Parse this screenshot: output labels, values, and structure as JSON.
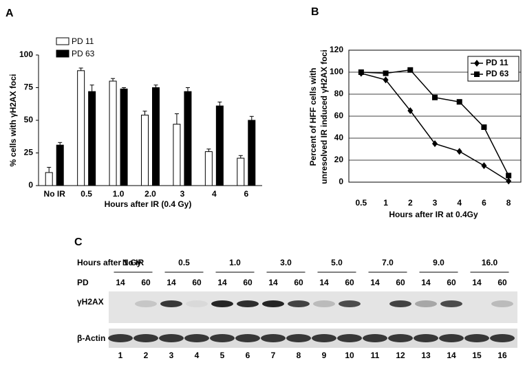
{
  "panel_labels": [
    "A",
    "B",
    "C"
  ],
  "chart_data": [
    {
      "type": "bar",
      "ylabel": "% cells with γH2AX foci",
      "xlabel": "Hours after IR (0.4 Gy)",
      "categories": [
        "No IR",
        "0.5",
        "1.0",
        "2.0",
        "3",
        "4",
        "6"
      ],
      "series": [
        {
          "name": "PD 11",
          "color": "#ffffff",
          "values": [
            10,
            88,
            80,
            54,
            47,
            26,
            21
          ],
          "errors": [
            4,
            2,
            2,
            3,
            8,
            2,
            2
          ]
        },
        {
          "name": "PD 63",
          "color": "#000000",
          "values": [
            31,
            72,
            74,
            75,
            72,
            61,
            50
          ],
          "errors": [
            2,
            5,
            1,
            2,
            3,
            3,
            3
          ]
        }
      ],
      "ylim": [
        0,
        100
      ],
      "yticks": [
        0,
        25,
        50,
        75,
        100
      ],
      "grid": false,
      "legend": "upper left"
    },
    {
      "type": "line",
      "ylabel": [
        "Percent of HFF cells with",
        "unresolved IR induced γH2AX foci"
      ],
      "xlabel": "Hours after IR at 0.4Gy",
      "categories": [
        "0.5",
        "1",
        "2",
        "3",
        "4",
        "6",
        "8"
      ],
      "series": [
        {
          "name": "PD 11",
          "color": "#000000",
          "marker": "diamond",
          "values": [
            99,
            93,
            65,
            35,
            28,
            15,
            1
          ]
        },
        {
          "name": "PD 63",
          "color": "#000000",
          "marker": "square",
          "values": [
            100,
            99,
            102,
            77,
            73,
            50,
            6
          ]
        }
      ],
      "ylim": [
        0,
        120
      ],
      "yticks": [
        0,
        20,
        40,
        60,
        80,
        100,
        120
      ],
      "grid": true,
      "legend": "upper right"
    }
  ],
  "blot": {
    "row_header": "Hours after 1 Gy",
    "groups": [
      "No IR",
      "0.5",
      "1.0",
      "3.0",
      "5.0",
      "7.0",
      "9.0",
      "16.0"
    ],
    "pd_label": "PD",
    "pd": [
      "14",
      "60",
      "14",
      "60",
      "14",
      "60",
      "14",
      "60",
      "14",
      "60",
      "14",
      "60",
      "14",
      "60",
      "14",
      "60"
    ],
    "rows": [
      "γH2AX",
      "β-Actin"
    ],
    "lanes": [
      "1",
      "2",
      "3",
      "4",
      "5",
      "6",
      "7",
      "8",
      "9",
      "10",
      "11",
      "12",
      "13",
      "14",
      "15",
      "16"
    ]
  }
}
